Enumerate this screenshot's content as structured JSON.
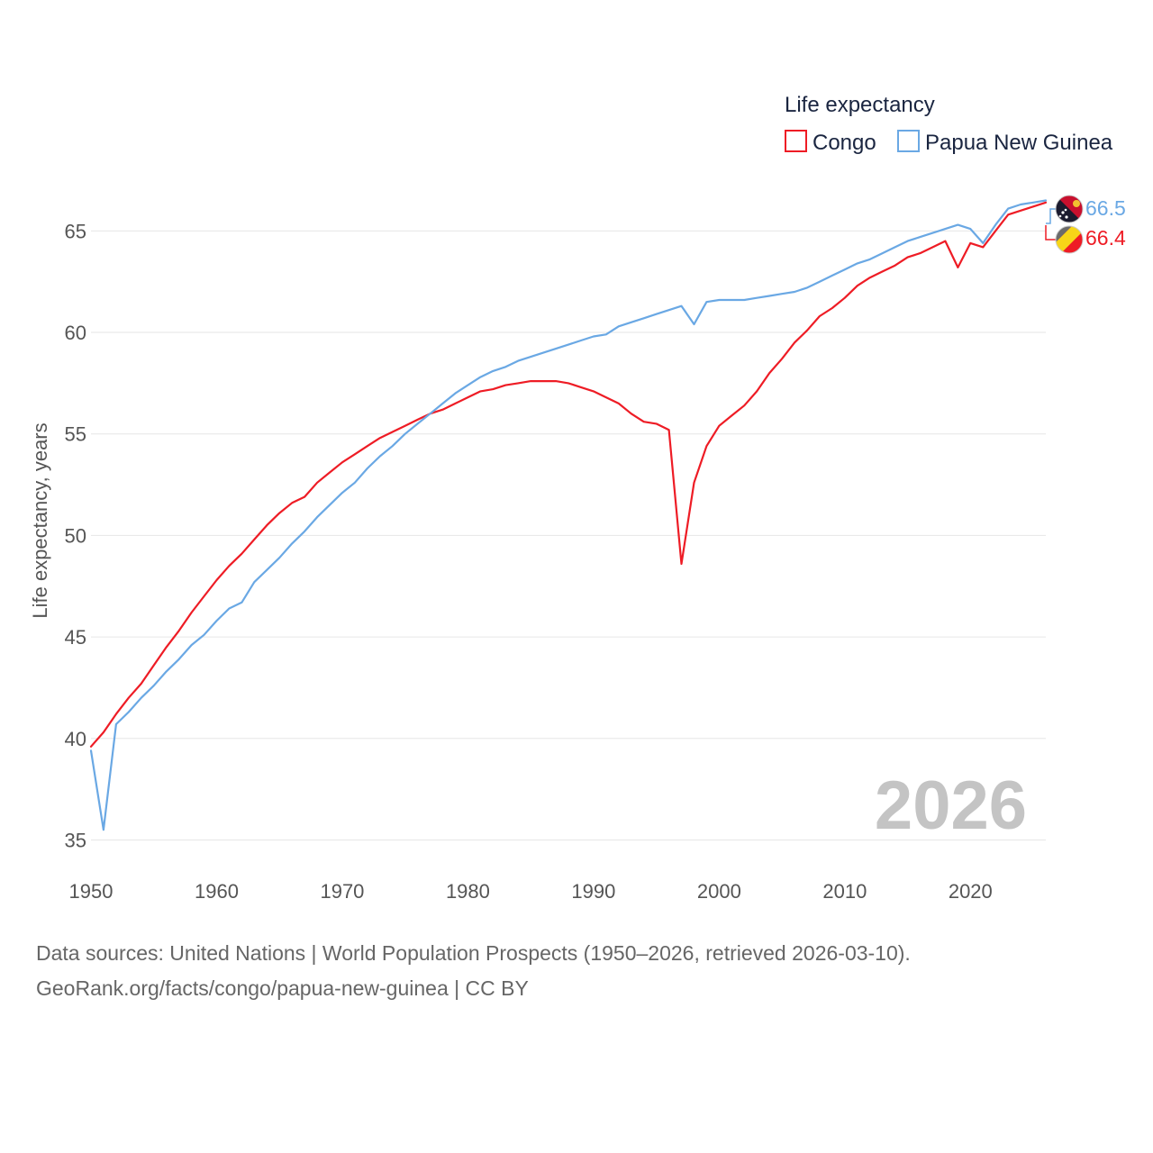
{
  "colors": {
    "congo": "#ee1c25",
    "png": "#6aa8e4",
    "grid": "#e6e6e6",
    "watermark": "#c4c4c4"
  },
  "legend": {
    "title": "Life expectancy",
    "items": [
      "Congo",
      "Papua New Guinea"
    ]
  },
  "watermark": "2026",
  "end_labels": {
    "png": "66.5",
    "congo": "66.4"
  },
  "flags": {
    "png": "papua-new-guinea-flag-icon",
    "congo": "congo-flag-icon"
  },
  "source": {
    "line1": "Data sources: United Nations | World Population Prospects (1950–2026, retrieved 2026-03-10).",
    "line2": "GeoRank.org/facts/congo/papua-new-guinea | CC BY"
  },
  "chart_data": {
    "type": "line",
    "title": "Life expectancy",
    "xlabel": "",
    "ylabel": "Life expectancy, years",
    "xlim": [
      1950,
      2026
    ],
    "ylim": [
      34,
      67.5
    ],
    "x_ticks": [
      1950,
      1960,
      1970,
      1980,
      1990,
      2000,
      2010,
      2020
    ],
    "y_ticks": [
      35,
      40,
      45,
      50,
      55,
      60,
      65
    ],
    "grid": true,
    "legend_position": "top-right",
    "x": [
      1950,
      1951,
      1952,
      1953,
      1954,
      1955,
      1956,
      1957,
      1958,
      1959,
      1960,
      1961,
      1962,
      1963,
      1964,
      1965,
      1966,
      1967,
      1968,
      1969,
      1970,
      1971,
      1972,
      1973,
      1974,
      1975,
      1976,
      1977,
      1978,
      1979,
      1980,
      1981,
      1982,
      1983,
      1984,
      1985,
      1986,
      1987,
      1988,
      1989,
      1990,
      1991,
      1992,
      1993,
      1994,
      1995,
      1996,
      1997,
      1998,
      1999,
      2000,
      2001,
      2002,
      2003,
      2004,
      2005,
      2006,
      2007,
      2008,
      2009,
      2010,
      2011,
      2012,
      2013,
      2014,
      2015,
      2016,
      2017,
      2018,
      2019,
      2020,
      2021,
      2022,
      2023,
      2024,
      2025,
      2026
    ],
    "series": [
      {
        "name": "Congo",
        "values": [
          39.6,
          40.3,
          41.2,
          42.0,
          42.7,
          43.6,
          44.5,
          45.3,
          46.2,
          47.0,
          47.8,
          48.5,
          49.1,
          49.8,
          50.5,
          51.1,
          51.6,
          51.9,
          52.6,
          53.1,
          53.6,
          54.0,
          54.4,
          54.8,
          55.1,
          55.4,
          55.7,
          56.0,
          56.2,
          56.5,
          56.8,
          57.1,
          57.2,
          57.4,
          57.5,
          57.6,
          57.6,
          57.6,
          57.5,
          57.3,
          57.1,
          56.8,
          56.5,
          56.0,
          55.6,
          55.5,
          55.2,
          48.6,
          52.6,
          54.4,
          55.4,
          55.9,
          56.4,
          57.1,
          58.0,
          58.7,
          59.5,
          60.1,
          60.8,
          61.2,
          61.7,
          62.3,
          62.7,
          63.0,
          63.3,
          63.7,
          63.9,
          64.2,
          64.5,
          63.2,
          64.4,
          64.2,
          65.0,
          65.8,
          66.0,
          66.2,
          66.4
        ]
      },
      {
        "name": "Papua New Guinea",
        "values": [
          39.4,
          35.5,
          40.7,
          41.3,
          42.0,
          42.6,
          43.3,
          43.9,
          44.6,
          45.1,
          45.8,
          46.4,
          46.7,
          47.7,
          48.3,
          48.9,
          49.6,
          50.2,
          50.9,
          51.5,
          52.1,
          52.6,
          53.3,
          53.9,
          54.4,
          55.0,
          55.5,
          56.0,
          56.5,
          57.0,
          57.4,
          57.8,
          58.1,
          58.3,
          58.6,
          58.8,
          59.0,
          59.2,
          59.4,
          59.6,
          59.8,
          59.9,
          60.3,
          60.5,
          60.7,
          60.9,
          61.1,
          61.3,
          60.4,
          61.5,
          61.6,
          61.6,
          61.6,
          61.7,
          61.8,
          61.9,
          62.0,
          62.2,
          62.5,
          62.8,
          63.1,
          63.4,
          63.6,
          63.9,
          64.2,
          64.5,
          64.7,
          64.9,
          65.1,
          65.3,
          65.1,
          64.4,
          65.3,
          66.1,
          66.3,
          66.4,
          66.5
        ]
      }
    ]
  }
}
